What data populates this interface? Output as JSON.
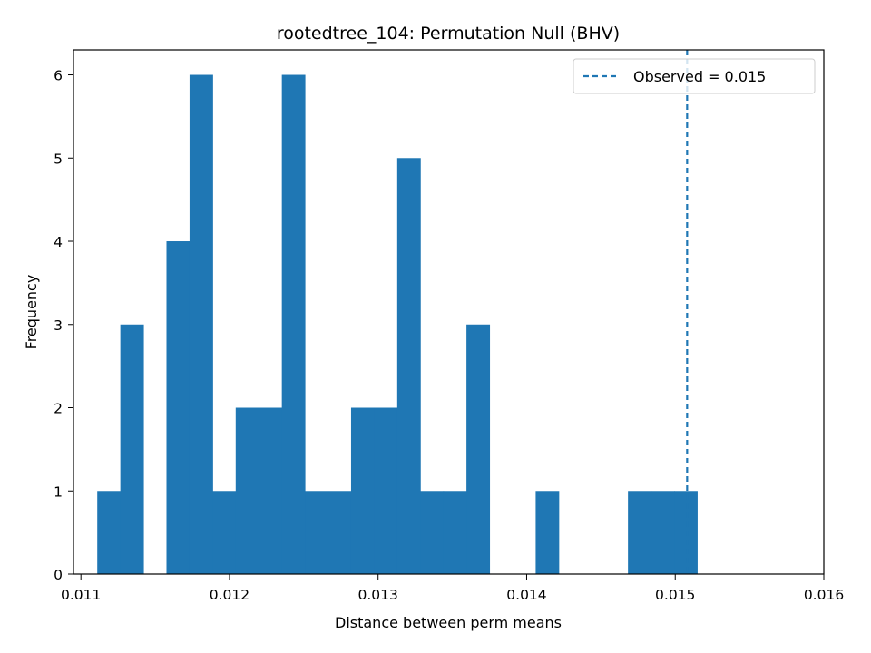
{
  "chart_data": {
    "type": "bar",
    "title": "rootedtree_104: Permutation Null (BHV)",
    "xlabel": "Distance between perm means",
    "ylabel": "Frequency",
    "xlim": [
      0.01095,
      0.016
    ],
    "ylim": [
      0,
      6.3
    ],
    "xticks": [
      0.011,
      0.012,
      0.013,
      0.014,
      0.015,
      0.016
    ],
    "xtick_labels": [
      "0.011",
      "0.012",
      "0.013",
      "0.014",
      "0.015",
      "0.016"
    ],
    "yticks": [
      0,
      1,
      2,
      3,
      4,
      5,
      6
    ],
    "ytick_labels": [
      "0",
      "1",
      "2",
      "3",
      "4",
      "5",
      "6"
    ],
    "bin_start": 0.01111,
    "bin_width": 0.0001553,
    "counts": [
      1,
      3,
      0,
      4,
      6,
      1,
      2,
      2,
      6,
      1,
      1,
      2,
      2,
      5,
      1,
      1,
      3,
      0,
      0,
      1,
      0,
      0,
      0,
      1,
      1,
      1
    ],
    "bar_color": "#1f77b4",
    "observed_value": 0.01508,
    "observed_color": "#1f77b4",
    "legend": {
      "placement": "upper-right",
      "label": "Observed = 0.015"
    },
    "grid": false
  }
}
